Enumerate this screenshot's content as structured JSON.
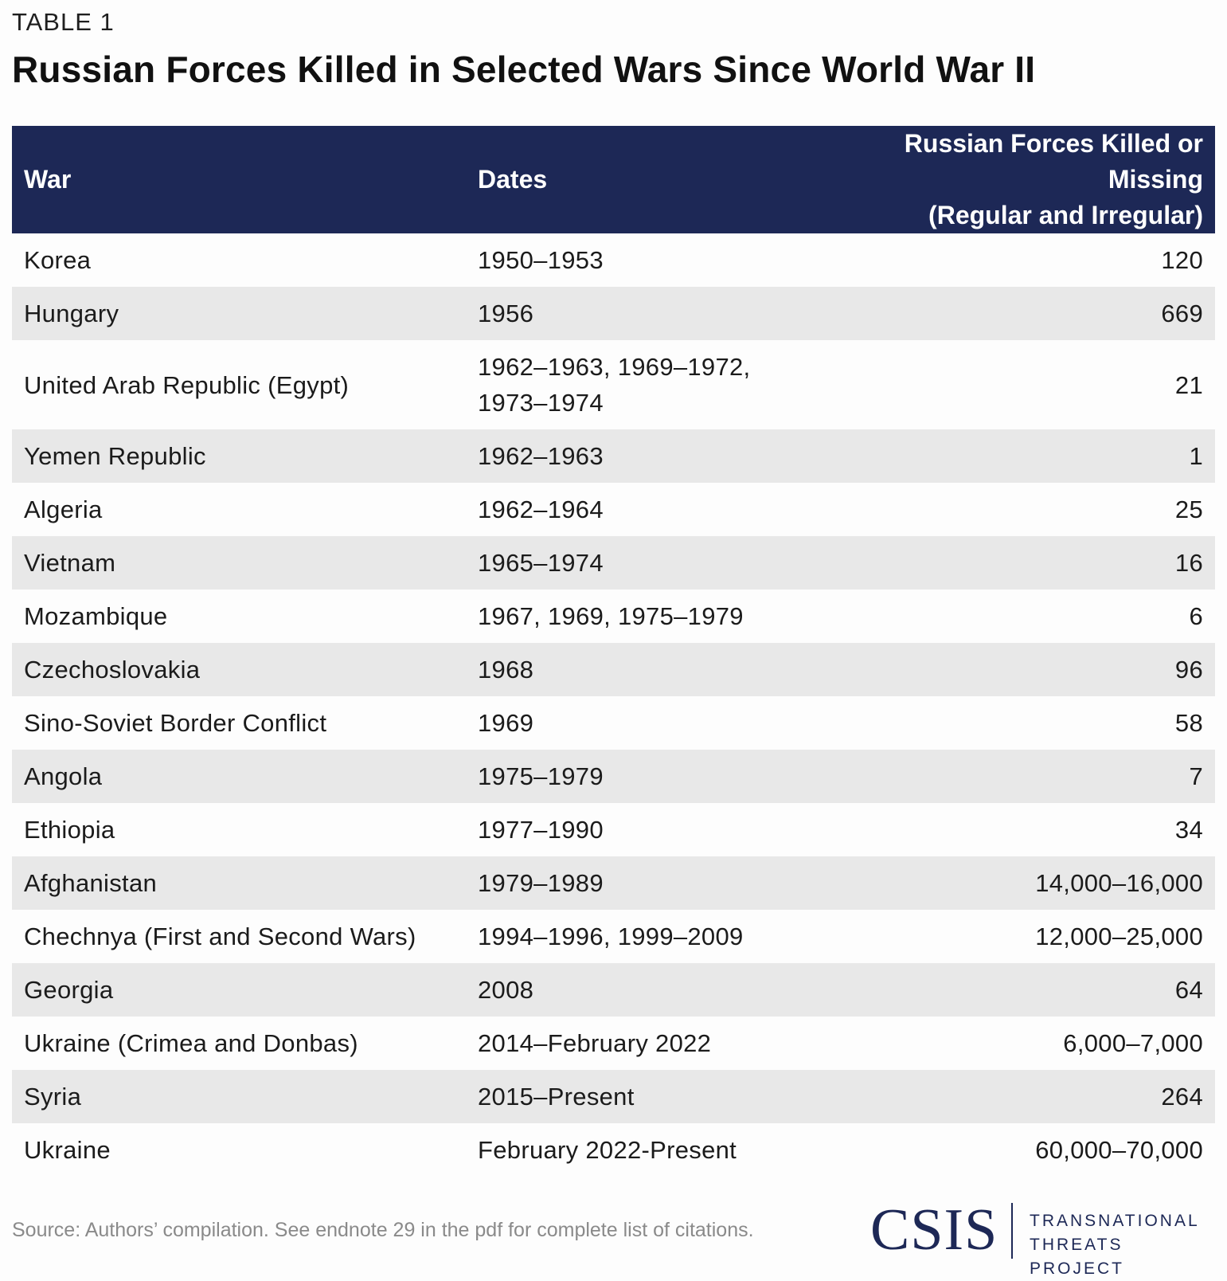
{
  "label": "TABLE 1",
  "title": "Russian Forces Killed in Selected Wars Since World War II",
  "table": {
    "headers": {
      "war": "War",
      "dates": "Dates",
      "killed_line1": "Russian Forces Killed or Missing",
      "killed_line2": "(Regular and Irregular)"
    },
    "rows": [
      {
        "war": "Korea",
        "dates": "1950–1953",
        "killed": "120"
      },
      {
        "war": "Hungary",
        "dates": "1956",
        "killed": "669"
      },
      {
        "war": "United Arab Republic (Egypt)",
        "dates_line1": "1962–1963, 1969–1972,",
        "dates_line2": "1973–1974",
        "killed": "21"
      },
      {
        "war": "Yemen Republic",
        "dates": "1962–1963",
        "killed": "1"
      },
      {
        "war": "Algeria",
        "dates": "1962–1964",
        "killed": "25"
      },
      {
        "war": "Vietnam",
        "dates": "1965–1974",
        "killed": "16"
      },
      {
        "war": "Mozambique",
        "dates": "1967, 1969, 1975–1979",
        "killed": "6"
      },
      {
        "war": "Czechoslovakia",
        "dates": "1968",
        "killed": "96"
      },
      {
        "war": "Sino-Soviet Border Conflict",
        "dates": "1969",
        "killed": "58"
      },
      {
        "war": "Angola",
        "dates": "1975–1979",
        "killed": "7"
      },
      {
        "war": "Ethiopia",
        "dates": "1977–1990",
        "killed": "34"
      },
      {
        "war": "Afghanistan",
        "dates": "1979–1989",
        "killed": "14,000–16,000"
      },
      {
        "war": "Chechnya (First and Second Wars)",
        "dates": "1994–1996, 1999–2009",
        "killed": "12,000–25,000"
      },
      {
        "war": "Georgia",
        "dates": "2008",
        "killed": "64"
      },
      {
        "war": "Ukraine (Crimea and Donbas)",
        "dates": "2014–February 2022",
        "killed": "6,000–7,000"
      },
      {
        "war": "Syria",
        "dates": "2015–Present",
        "killed": "264"
      },
      {
        "war": "Ukraine",
        "dates": "February 2022-Present",
        "killed": "60,000–70,000"
      }
    ]
  },
  "source": "Source: Authors’ compilation. See endnote 29 in the pdf for complete list of citations.",
  "logo": {
    "mark": "CSIS",
    "line1": "TRANSNATIONAL",
    "line2": "THREATS PROJECT"
  },
  "colors": {
    "header_bg": "#1d2856",
    "stripe": "#e8e8e8",
    "logo": "#1d2856"
  }
}
